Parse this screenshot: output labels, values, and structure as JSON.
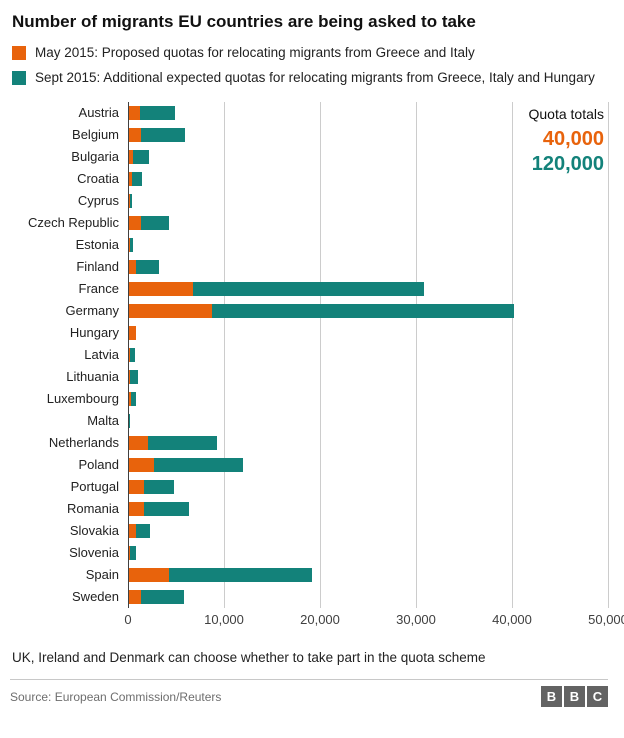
{
  "title": "Number of migrants EU countries are being asked to take",
  "legend": [
    {
      "label": "May 2015: Proposed quotas for relocating migrants from Greece and Italy",
      "color": "#e8630c"
    },
    {
      "label": "Sept 2015: Additional expected quotas for relocating migrants from Greece, Italy and Hungary",
      "color": "#13827a"
    }
  ],
  "quota_totals": {
    "label": "Quota totals",
    "may": "40,000",
    "sept": "120,000"
  },
  "chart_data": {
    "type": "bar",
    "orientation": "horizontal",
    "stacked": true,
    "title": "Number of migrants EU countries are being asked to take",
    "xlabel": "",
    "ylabel": "",
    "xlim": [
      0,
      50000
    ],
    "xticks": [
      "0",
      "10,000",
      "20,000",
      "30,000",
      "40,000",
      "50,000"
    ],
    "grid": true,
    "legend_position": "top-left",
    "categories": [
      "Austria",
      "Belgium",
      "Bulgaria",
      "Croatia",
      "Cyprus",
      "Czech Republic",
      "Estonia",
      "Finland",
      "France",
      "Germany",
      "Hungary",
      "Latvia",
      "Lithuania",
      "Luxembourg",
      "Malta",
      "Netherlands",
      "Poland",
      "Portugal",
      "Romania",
      "Slovakia",
      "Slovenia",
      "Spain",
      "Sweden"
    ],
    "series": [
      {
        "name": "May 2015: Proposed quotas",
        "color": "#e8630c",
        "values": [
          1213,
          1364,
          572,
          374,
          173,
          1328,
          192,
          792,
          6752,
          8763,
          827,
          220,
          255,
          348,
          60,
          2047,
          2659,
          1701,
          1705,
          785,
          230,
          4288,
          1369
        ]
      },
      {
        "name": "Sept 2015: Additional expected quotas",
        "color": "#13827a",
        "values": [
          3640,
          4564,
          1600,
          1064,
          274,
          2978,
          373,
          2398,
          24031,
          31443,
          0,
          526,
          780,
          440,
          133,
          7214,
          9287,
          3074,
          4646,
          1502,
          631,
          14931,
          4469
        ]
      }
    ]
  },
  "footnote": "UK, Ireland and Denmark can choose whether to take part in the quota scheme",
  "footer": {
    "source": "Source: European Commission/Reuters",
    "bbc_blocks": [
      "B",
      "B",
      "C"
    ]
  }
}
